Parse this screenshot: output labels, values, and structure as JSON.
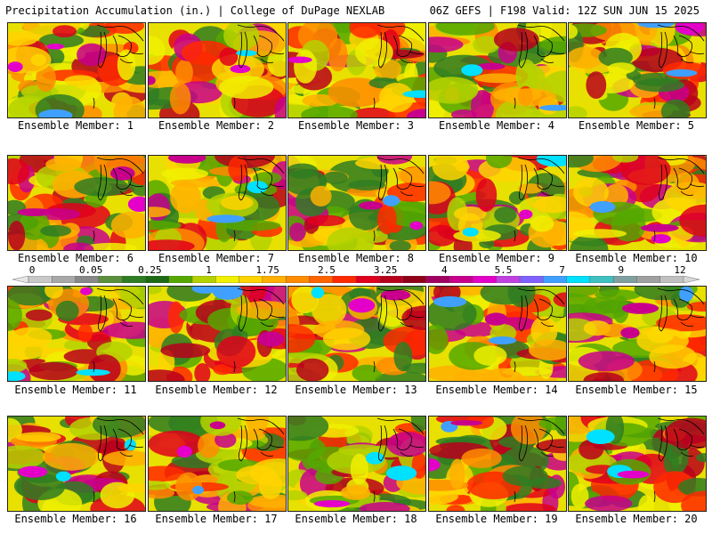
{
  "header": {
    "left": "Precipitation Accumulation (in.) | College of DuPage NEXLAB",
    "right": "06Z GEFS | F198 Valid: 12Z SUN JUN 15 2025"
  },
  "members": [
    "Ensemble Member: 1",
    "Ensemble Member: 2",
    "Ensemble Member: 3",
    "Ensemble Member: 4",
    "Ensemble Member: 5",
    "Ensemble Member: 6",
    "Ensemble Member: 7",
    "Ensemble Member: 8",
    "Ensemble Member: 9",
    "Ensemble Member: 10",
    "Ensemble Member: 11",
    "Ensemble Member: 12",
    "Ensemble Member: 13",
    "Ensemble Member: 14",
    "Ensemble Member: 15",
    "Ensemble Member: 16",
    "Ensemble Member: 17",
    "Ensemble Member: 18",
    "Ensemble Member: 19",
    "Ensemble Member: 20"
  ],
  "scale": {
    "labels": [
      "0",
      "0.05",
      "0.25",
      "1",
      "1.75",
      "2.5",
      "3.25",
      "4",
      "5.5",
      "7",
      "9",
      "12"
    ],
    "colors": [
      "#e6e6e6",
      "#c8c8c8",
      "#a8a8a8",
      "#888888",
      "#5a8f3c",
      "#2f7d22",
      "#1e6a14",
      "#55a800",
      "#b4d200",
      "#f0f000",
      "#ffd400",
      "#ffb000",
      "#ff8c00",
      "#ff6400",
      "#ff2800",
      "#e0001c",
      "#b8001c",
      "#900018",
      "#a00060",
      "#c8008c",
      "#e400c8",
      "#c040e0",
      "#8060ff",
      "#40a0ff",
      "#00e0ff",
      "#40c0c0",
      "#80a0a0",
      "#a0a0a0",
      "#c0c0c0",
      "#d8d8d8"
    ]
  }
}
